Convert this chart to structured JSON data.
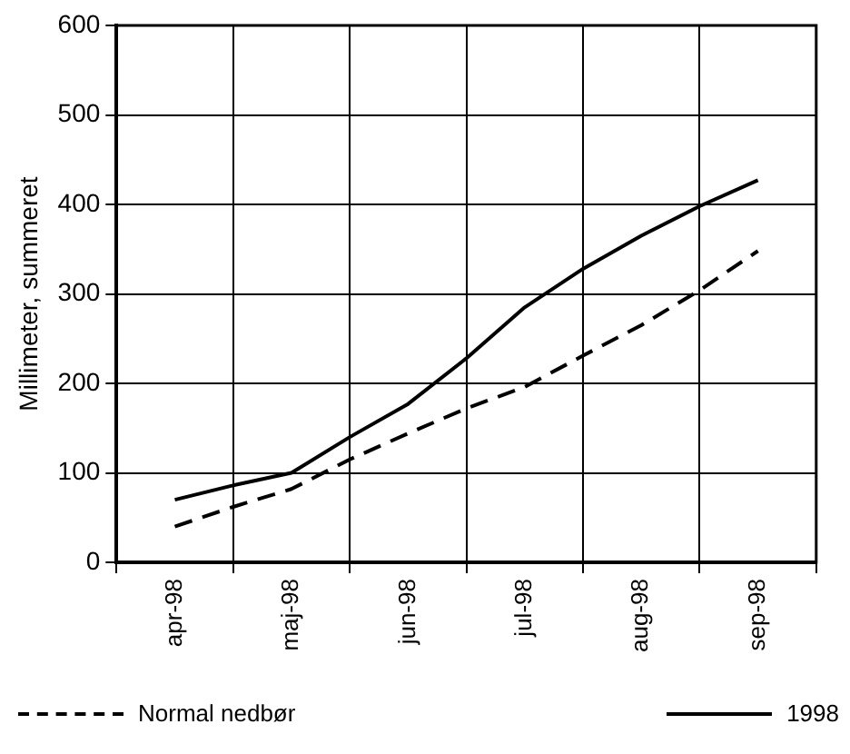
{
  "chart_data": {
    "type": "line",
    "ylabel": "Millimeter, summeret",
    "categories": [
      "apr-98",
      null,
      "maj-98",
      null,
      "jun-98",
      null,
      "jul-98",
      null,
      "aug-98",
      null,
      "sep-98"
    ],
    "series": [
      {
        "name": "Normal nedbør",
        "color": "#000000",
        "line_style": "dashed",
        "values": [
          40,
          62,
          82,
          115,
          144,
          172,
          196,
          231,
          265,
          304,
          348
        ]
      },
      {
        "name": "1998",
        "color": "#000000",
        "line_style": "solid",
        "values": [
          70,
          86,
          100,
          140,
          177,
          228,
          285,
          328,
          365,
          398,
          427
        ]
      }
    ],
    "ylim": [
      0,
      600
    ],
    "yticks": [
      0,
      100,
      200,
      300,
      400,
      500,
      600
    ],
    "grid": true,
    "marker": "none",
    "legend": "bottom"
  }
}
